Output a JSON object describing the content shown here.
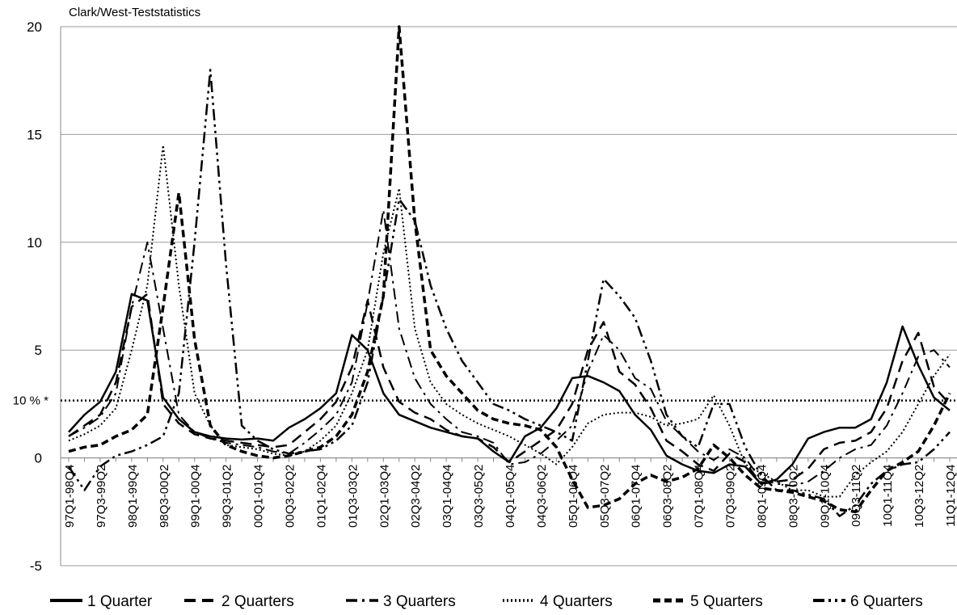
{
  "chart_data": {
    "type": "line",
    "ylabel": "Clark/West-Teststatistics",
    "categories": [
      "97Q1-98Q4",
      null,
      "97Q3-99Q2",
      null,
      "98Q1-99Q4",
      null,
      "98Q3-00Q2",
      null,
      "99Q1-00Q4",
      null,
      "99Q3-01Q2",
      null,
      "00Q1-01Q4",
      null,
      "00Q3-02Q2",
      null,
      "01Q1-02Q4",
      null,
      "01Q3-03Q2",
      null,
      "02Q1-03Q4",
      null,
      "02Q3-04Q2",
      null,
      "03Q1-04Q4",
      null,
      "03Q3-05Q2",
      null,
      "04Q1-05Q4",
      null,
      "04Q3-06Q2",
      null,
      "05Q1-06Q4",
      null,
      "05Q3-07Q2",
      null,
      "06Q1-07Q4",
      null,
      "06Q3-08Q2",
      null,
      "07Q1-08Q4",
      null,
      "07Q3-09Q2",
      null,
      "08Q1-09Q4",
      null,
      "08Q3-10Q2",
      null,
      "09Q1-10Q4",
      null,
      "09Q3-11Q2",
      null,
      "10Q1-11Q4",
      null,
      "10Q3-12Q2",
      null,
      "11Q1-12Q4"
    ],
    "series": [
      {
        "name": "1 Quarter",
        "color": "#000000",
        "style": "solid",
        "values": [
          1.2,
          2.0,
          2.6,
          4.0,
          7.6,
          7.3,
          2.8,
          1.8,
          1.2,
          1.0,
          0.9,
          0.85,
          0.9,
          0.8,
          1.4,
          1.8,
          2.3,
          3.0,
          5.7,
          5.0,
          3.0,
          2.0,
          1.7,
          1.4,
          1.2,
          1.0,
          0.9,
          0.3,
          -0.2,
          1.0,
          1.4,
          2.3,
          3.7,
          3.8,
          3.5,
          3.1,
          2.0,
          1.3,
          0.1,
          -0.3,
          -0.6,
          -0.7,
          -0.3,
          -0.4,
          -1.2,
          -1.0,
          -0.3,
          0.9,
          1.2,
          1.4,
          1.4,
          1.8,
          3.5,
          6.1,
          4.3,
          2.8,
          2.2
        ]
      },
      {
        "name": "2 Quarters",
        "color": "#000000",
        "style": "dashed",
        "values": [
          1.0,
          1.5,
          2.0,
          3.5,
          7.0,
          7.6,
          2.5,
          1.6,
          1.1,
          0.9,
          0.8,
          0.7,
          0.6,
          0.5,
          0.6,
          1.2,
          1.8,
          2.6,
          4.2,
          7.3,
          4.2,
          2.6,
          2.1,
          1.8,
          1.3,
          1.0,
          0.9,
          0.5,
          -0.2,
          0.3,
          0.8,
          1.3,
          2.5,
          5.0,
          6.3,
          4.0,
          3.4,
          2.3,
          0.8,
          0.3,
          -0.3,
          -0.6,
          0.2,
          -0.2,
          -1.2,
          -1.1,
          -1.0,
          -0.5,
          0.4,
          0.7,
          0.8,
          1.2,
          2.3,
          4.5,
          5.8,
          3.3,
          2.5
        ]
      },
      {
        "name": "3 Quarters",
        "color": "#000000",
        "style": "dash-dot",
        "values": [
          1.0,
          1.4,
          1.9,
          3.0,
          7.0,
          10.0,
          6.0,
          2.0,
          1.2,
          0.9,
          0.7,
          0.6,
          0.5,
          0.3,
          0.2,
          0.7,
          1.3,
          2.0,
          3.5,
          7.2,
          11.5,
          6.0,
          3.7,
          2.5,
          1.8,
          1.2,
          1.0,
          0.7,
          -0.3,
          -0.2,
          0.2,
          0.8,
          1.5,
          4.0,
          5.7,
          5.0,
          3.7,
          3.2,
          1.7,
          1.0,
          0.3,
          -0.1,
          0.4,
          0,
          -1.0,
          -1.2,
          -1.3,
          -1.1,
          -0.6,
          0.0,
          0.4,
          0.6,
          1.5,
          3.0,
          4.7,
          5.0,
          4.2
        ]
      },
      {
        "name": "4 Quarters",
        "color": "#000000",
        "style": "dotted",
        "values": [
          0.8,
          1.1,
          1.5,
          2.3,
          5.0,
          8.0,
          14.5,
          8.0,
          3.0,
          1.5,
          0.6,
          0.5,
          0.4,
          0.2,
          0.1,
          0.3,
          0.8,
          1.5,
          3.0,
          5.0,
          9.5,
          12.5,
          6.0,
          3.5,
          2.5,
          2.0,
          1.6,
          1.3,
          1.0,
          0.6,
          0.2,
          -0.3,
          0.5,
          1.6,
          2.0,
          2.1,
          2.1,
          1.9,
          1.5,
          1.6,
          1.8,
          2.9,
          1.5,
          -0.3,
          -0.7,
          -1.1,
          -1.5,
          -1.5,
          -1.8,
          -1.8,
          -0.8,
          -0.2,
          0.3,
          1.2,
          2.5,
          3.8,
          4.8
        ]
      },
      {
        "name": "5 Quarters",
        "color": "#000000",
        "style": "heavy-dashed",
        "values": [
          0.3,
          0.5,
          0.6,
          1.0,
          1.3,
          2.0,
          7.0,
          12.3,
          5.5,
          1.5,
          0.6,
          0.3,
          0.1,
          0,
          0.1,
          0.3,
          0.5,
          1.0,
          2.0,
          4.0,
          7.5,
          20.0,
          11.0,
          5.0,
          3.8,
          3.0,
          2.2,
          1.8,
          1.6,
          1.5,
          1.3,
          0.5,
          -1.0,
          -2.3,
          -2.2,
          -1.9,
          -1.2,
          -0.8,
          -1.1,
          -0.9,
          -0.5,
          0.6,
          0,
          -0.8,
          -1.4,
          -1.5,
          -1.6,
          -1.8,
          -2.0,
          -2.4,
          -2.5,
          -1.5,
          -0.6,
          -0.2,
          0.3,
          1.5,
          3.0
        ]
      },
      {
        "name": "6 Quarters",
        "color": "#000000",
        "style": "dash-dot-dot",
        "values": [
          -0.4,
          -1.5,
          -0.4,
          0.1,
          0.3,
          0.6,
          1.0,
          3.0,
          10.0,
          18.0,
          9.0,
          1.5,
          0.8,
          0.4,
          0.2,
          0.3,
          0.4,
          0.8,
          1.5,
          3.5,
          7.5,
          12.0,
          11.0,
          8.0,
          6.0,
          4.5,
          3.5,
          2.5,
          2.2,
          1.8,
          1.5,
          1.2,
          0.8,
          4.5,
          8.3,
          7.5,
          6.5,
          4.5,
          2.0,
          1.0,
          0.5,
          2.5,
          2.5,
          0.5,
          -0.8,
          -1.5,
          -1.5,
          -1.7,
          -1.9,
          -2.7,
          -2.2,
          -1.2,
          -0.6,
          -0.3,
          -0.2,
          0.4,
          1.2
        ]
      }
    ],
    "reference_line": {
      "value": 2.66,
      "label": "10 % *"
    },
    "ylim": [
      -5,
      20
    ],
    "yticks": [
      -5,
      0,
      5,
      10,
      15,
      20
    ],
    "grid": true,
    "legend": "bottom"
  }
}
